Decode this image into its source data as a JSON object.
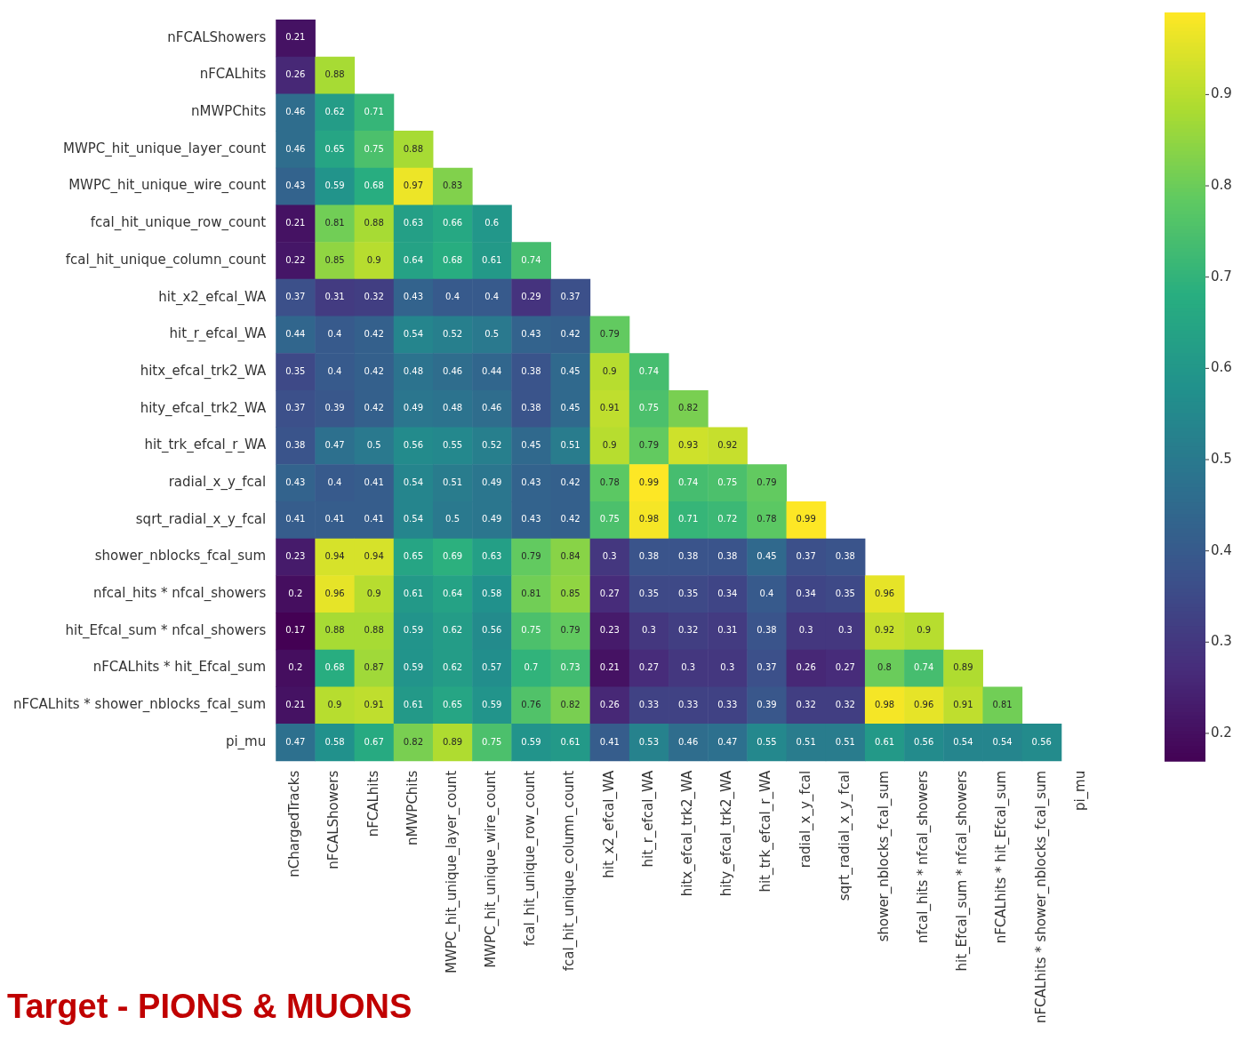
{
  "chart_data": {
    "type": "heatmap",
    "data_labels": true,
    "categories": [
      "nChargedTracks",
      "nFCALShowers",
      "nFCALhits",
      "nMWPChits",
      "MWPC_hit_unique_layer_count",
      "MWPC_hit_unique_wire_count",
      "fcal_hit_unique_row_count",
      "fcal_hit_unique_column_count",
      "hit_x2_efcal_WA",
      "hit_r_efcal_WA",
      "hitx_efcal_trk2_WA",
      "hity_efcal_trk2_WA",
      "hit_trk_efcal_r_WA",
      "radial_x_y_fcal",
      "sqrt_radial_x_y_fcal",
      "shower_nblocks_fcal_sum",
      "nfcal_hits * nfcal_showers",
      "hit_Efcal_sum * nfcal_showers",
      "nFCALhits * hit_Efcal_sum",
      "nFCALhits * shower_nblocks_fcal_sum",
      "pi_mu"
    ],
    "y_categories": [
      "nFCALShowers",
      "nFCALhits",
      "nMWPChits",
      "MWPC_hit_unique_layer_count",
      "MWPC_hit_unique_wire_count",
      "fcal_hit_unique_row_count",
      "fcal_hit_unique_column_count",
      "hit_x2_efcal_WA",
      "hit_r_efcal_WA",
      "hitx_efcal_trk2_WA",
      "hity_efcal_trk2_WA",
      "hit_trk_efcal_r_WA",
      "radial_x_y_fcal",
      "sqrt_radial_x_y_fcal",
      "shower_nblocks_fcal_sum",
      "nfcal_hits * nfcal_showers",
      "hit_Efcal_sum * nfcal_showers",
      "nFCALhits * hit_Efcal_sum",
      "nFCALhits * shower_nblocks_fcal_sum",
      "pi_mu"
    ],
    "cells": [
      [
        0.21,
        null,
        null,
        null,
        null,
        null,
        null,
        null,
        null,
        null,
        null,
        null,
        null,
        null,
        null,
        null,
        null,
        null,
        null,
        null,
        null
      ],
      [
        0.26,
        0.88,
        null,
        null,
        null,
        null,
        null,
        null,
        null,
        null,
        null,
        null,
        null,
        null,
        null,
        null,
        null,
        null,
        null,
        null,
        null
      ],
      [
        0.46,
        0.62,
        0.71,
        null,
        null,
        null,
        null,
        null,
        null,
        null,
        null,
        null,
        null,
        null,
        null,
        null,
        null,
        null,
        null,
        null,
        null
      ],
      [
        0.46,
        0.65,
        0.75,
        0.88,
        null,
        null,
        null,
        null,
        null,
        null,
        null,
        null,
        null,
        null,
        null,
        null,
        null,
        null,
        null,
        null,
        null
      ],
      [
        0.43,
        0.59,
        0.68,
        0.97,
        0.83,
        null,
        null,
        null,
        null,
        null,
        null,
        null,
        null,
        null,
        null,
        null,
        null,
        null,
        null,
        null,
        null
      ],
      [
        0.21,
        0.81,
        0.88,
        0.63,
        0.66,
        0.6,
        null,
        null,
        null,
        null,
        null,
        null,
        null,
        null,
        null,
        null,
        null,
        null,
        null,
        null,
        null
      ],
      [
        0.22,
        0.85,
        0.9,
        0.64,
        0.68,
        0.61,
        0.74,
        null,
        null,
        null,
        null,
        null,
        null,
        null,
        null,
        null,
        null,
        null,
        null,
        null,
        null
      ],
      [
        0.37,
        0.31,
        0.32,
        0.43,
        0.4,
        0.4,
        0.29,
        0.37,
        null,
        null,
        null,
        null,
        null,
        null,
        null,
        null,
        null,
        null,
        null,
        null,
        null
      ],
      [
        0.44,
        0.4,
        0.42,
        0.54,
        0.52,
        0.5,
        0.43,
        0.42,
        0.79,
        null,
        null,
        null,
        null,
        null,
        null,
        null,
        null,
        null,
        null,
        null,
        null
      ],
      [
        0.35,
        0.4,
        0.42,
        0.48,
        0.46,
        0.44,
        0.38,
        0.45,
        0.9,
        0.74,
        null,
        null,
        null,
        null,
        null,
        null,
        null,
        null,
        null,
        null,
        null
      ],
      [
        0.37,
        0.39,
        0.42,
        0.49,
        0.48,
        0.46,
        0.38,
        0.45,
        0.91,
        0.75,
        0.82,
        null,
        null,
        null,
        null,
        null,
        null,
        null,
        null,
        null,
        null
      ],
      [
        0.38,
        0.47,
        0.5,
        0.56,
        0.55,
        0.52,
        0.45,
        0.51,
        0.9,
        0.79,
        0.93,
        0.92,
        null,
        null,
        null,
        null,
        null,
        null,
        null,
        null,
        null
      ],
      [
        0.43,
        0.4,
        0.41,
        0.54,
        0.51,
        0.49,
        0.43,
        0.42,
        0.78,
        0.99,
        0.74,
        0.75,
        0.79,
        null,
        null,
        null,
        null,
        null,
        null,
        null,
        null
      ],
      [
        0.41,
        0.41,
        0.41,
        0.54,
        0.5,
        0.49,
        0.43,
        0.42,
        0.75,
        0.98,
        0.71,
        0.72,
        0.78,
        0.99,
        null,
        null,
        null,
        null,
        null,
        null,
        null
      ],
      [
        0.23,
        0.94,
        0.94,
        0.65,
        0.69,
        0.63,
        0.79,
        0.84,
        0.3,
        0.38,
        0.38,
        0.38,
        0.45,
        0.37,
        0.38,
        null,
        null,
        null,
        null,
        null,
        null
      ],
      [
        0.2,
        0.96,
        0.9,
        0.61,
        0.64,
        0.58,
        0.81,
        0.85,
        0.27,
        0.35,
        0.35,
        0.34,
        0.4,
        0.34,
        0.35,
        0.96,
        null,
        null,
        null,
        null,
        null
      ],
      [
        0.17,
        0.88,
        0.88,
        0.59,
        0.62,
        0.56,
        0.75,
        0.79,
        0.23,
        0.3,
        0.32,
        0.31,
        0.38,
        0.3,
        0.3,
        0.92,
        0.9,
        null,
        null,
        null,
        null
      ],
      [
        0.2,
        0.68,
        0.87,
        0.59,
        0.62,
        0.57,
        0.7,
        0.73,
        0.21,
        0.27,
        0.3,
        0.3,
        0.37,
        0.26,
        0.27,
        0.8,
        0.74,
        0.89,
        null,
        null,
        null
      ],
      [
        0.21,
        0.9,
        0.91,
        0.61,
        0.65,
        0.59,
        0.76,
        0.82,
        0.26,
        0.33,
        0.33,
        0.33,
        0.39,
        0.32,
        0.32,
        0.98,
        0.96,
        0.91,
        0.81,
        null,
        null
      ],
      [
        0.47,
        0.58,
        0.67,
        0.82,
        0.89,
        0.75,
        0.59,
        0.61,
        0.41,
        0.53,
        0.46,
        0.47,
        0.55,
        0.51,
        0.51,
        0.61,
        0.56,
        0.54,
        0.54,
        0.56,
        null
      ]
    ],
    "clim": [
      0.17,
      0.99
    ],
    "cticks": [
      0.2,
      0.3,
      0.4,
      0.5,
      0.6,
      0.7,
      0.8,
      0.9
    ],
    "annotations": [
      "Target - PIONS & MUONS"
    ]
  }
}
